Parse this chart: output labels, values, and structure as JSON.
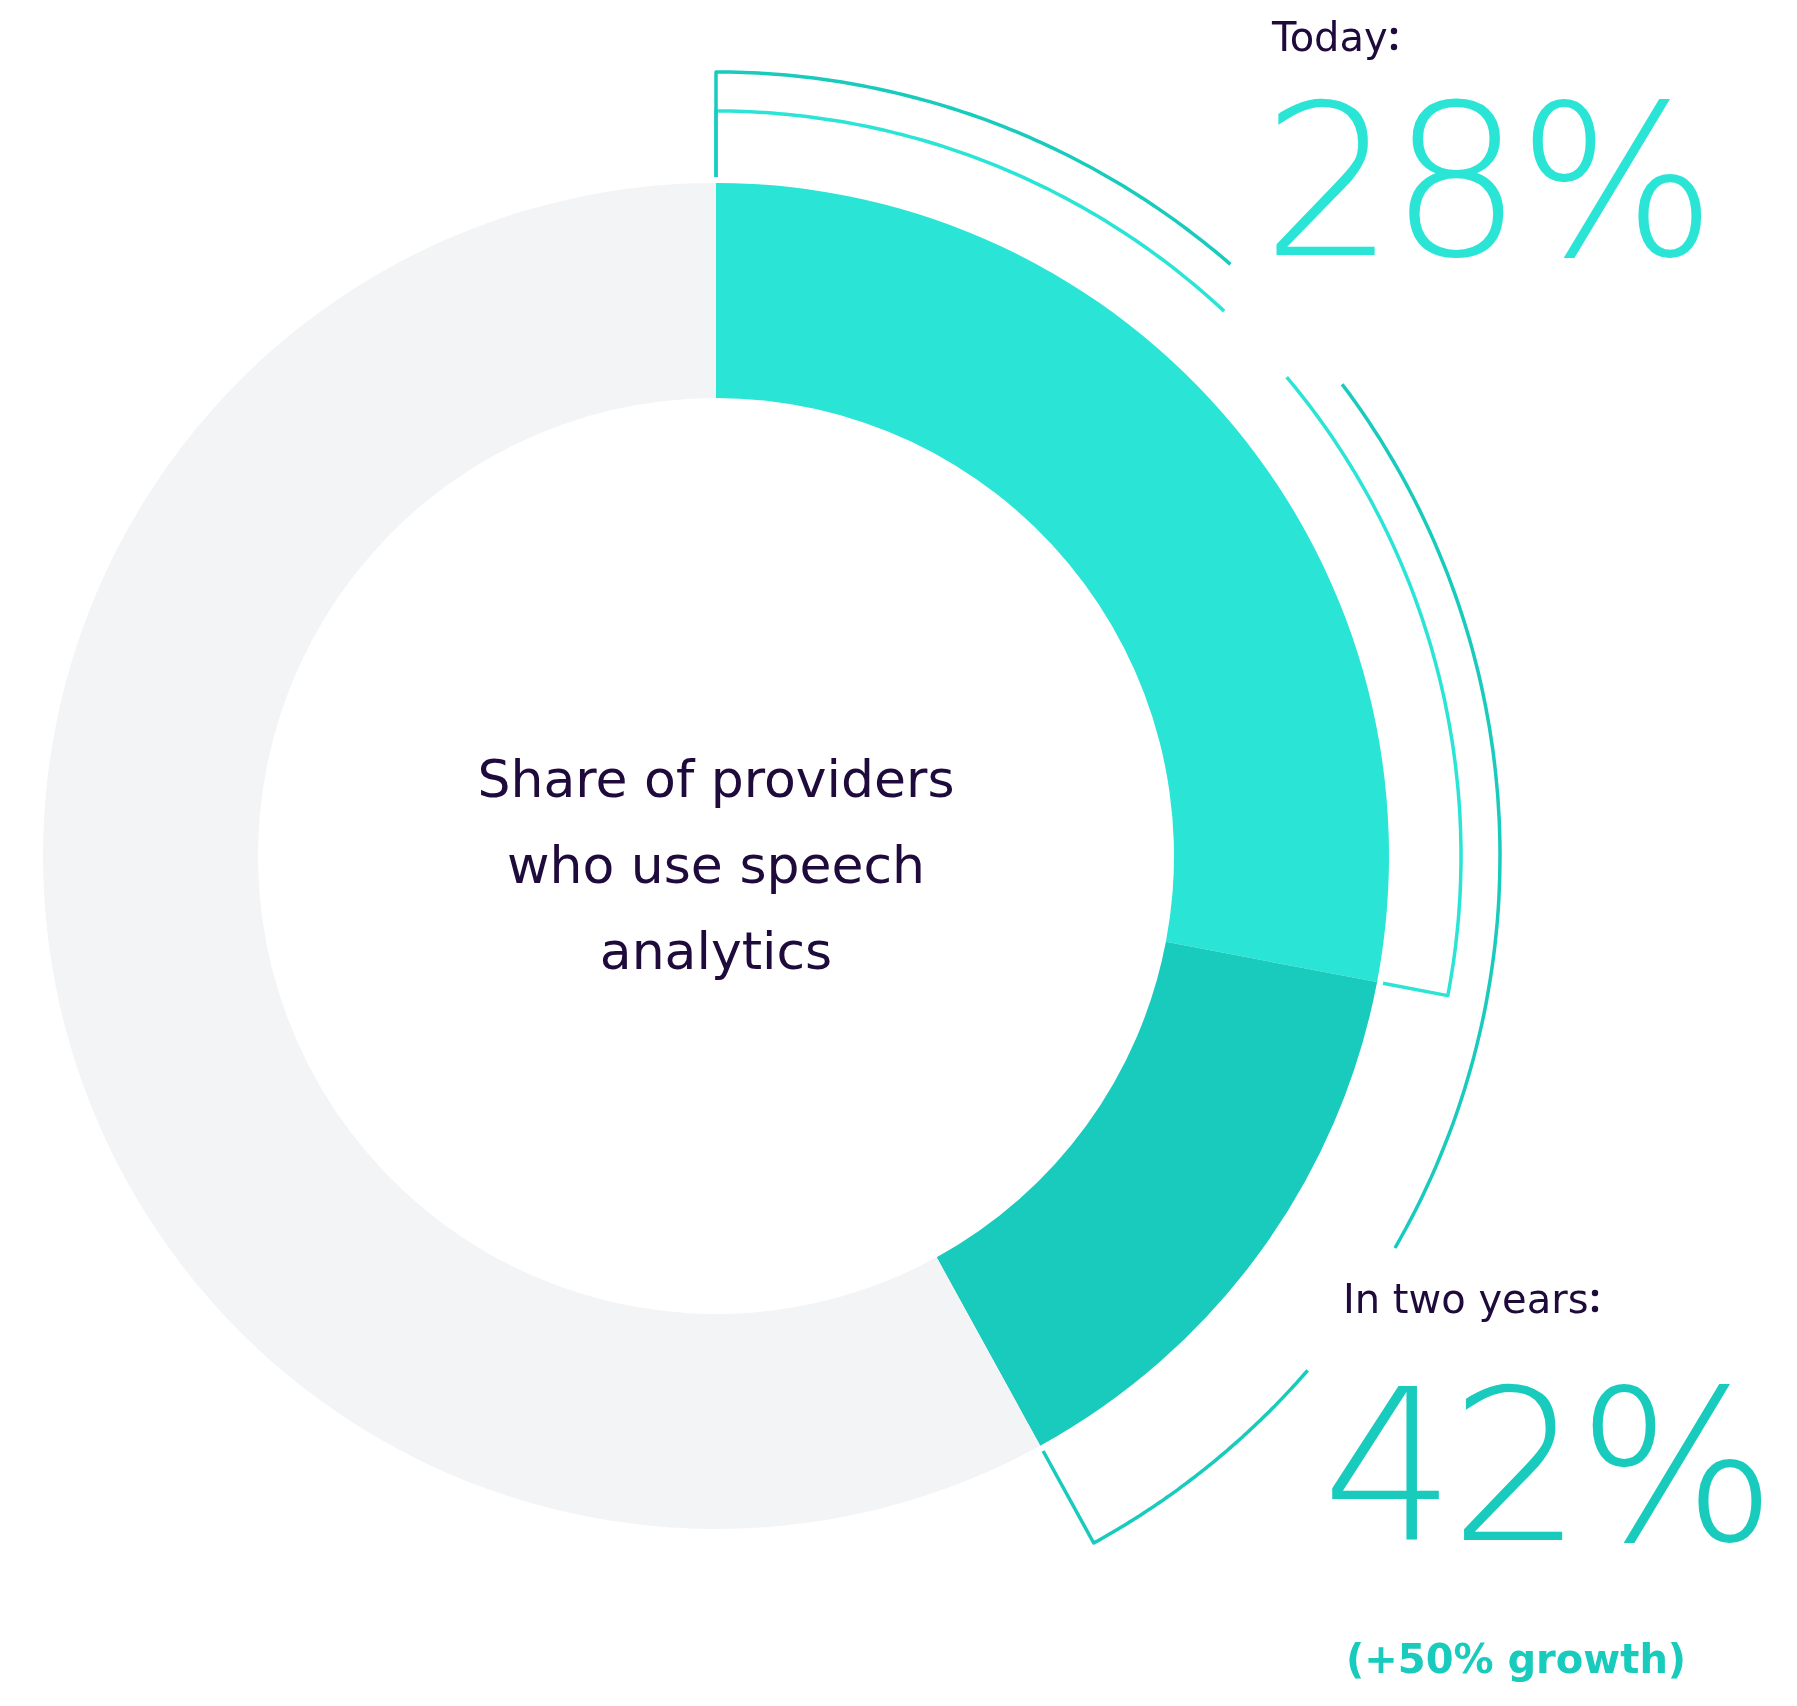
{
  "chart_data": {
    "type": "donut",
    "title": "Share of providers who use speech analytics",
    "categories": [
      "Today",
      "In two years",
      null
    ],
    "values": [
      28,
      14,
      58
    ],
    "colors": [
      "#2ae5d6",
      "#19cbbd",
      "#f3f4f6"
    ],
    "value_labels": [
      "28%",
      null,
      null
    ],
    "annotations": [
      "42%",
      "(+50% growth)"
    ]
  }
}
